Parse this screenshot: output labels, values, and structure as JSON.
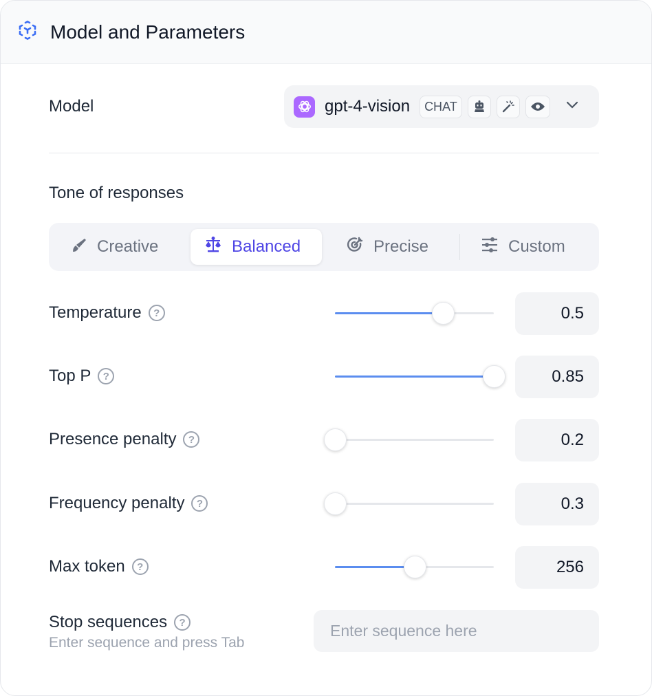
{
  "header": {
    "title": "Model and Parameters",
    "icon": "model-cube-icon",
    "accent": "#3b6ef5"
  },
  "model": {
    "label": "Model",
    "name": "gpt-4-vision",
    "type_badge": "CHAT",
    "provider_icon": "openai-icon",
    "capability_icons": [
      "robot-icon",
      "magic-wand-icon",
      "eye-icon"
    ],
    "brand_color": "#ab68ff"
  },
  "tone": {
    "title": "Tone of responses",
    "tabs": [
      {
        "label": "Creative",
        "icon": "brush-icon",
        "active": false
      },
      {
        "label": "Balanced",
        "icon": "scale-icon",
        "active": true
      },
      {
        "label": "Precise",
        "icon": "target-icon",
        "active": false
      },
      {
        "label": "Custom",
        "icon": "sliders-icon",
        "active": false
      }
    ]
  },
  "params": [
    {
      "label": "Temperature",
      "value": "0.5",
      "slider_percent": 68
    },
    {
      "label": "Top P",
      "value": "0.85",
      "slider_percent": 100
    },
    {
      "label": "Presence penalty",
      "value": "0.2",
      "slider_percent": 0
    },
    {
      "label": "Frequency penalty",
      "value": "0.3",
      "slider_percent": 0
    },
    {
      "label": "Max token",
      "value": "256",
      "slider_percent": 50
    }
  ],
  "stop": {
    "label": "Stop sequences",
    "hint": "Enter sequence and press Tab",
    "placeholder": "Enter sequence here"
  },
  "help_glyph": "?"
}
